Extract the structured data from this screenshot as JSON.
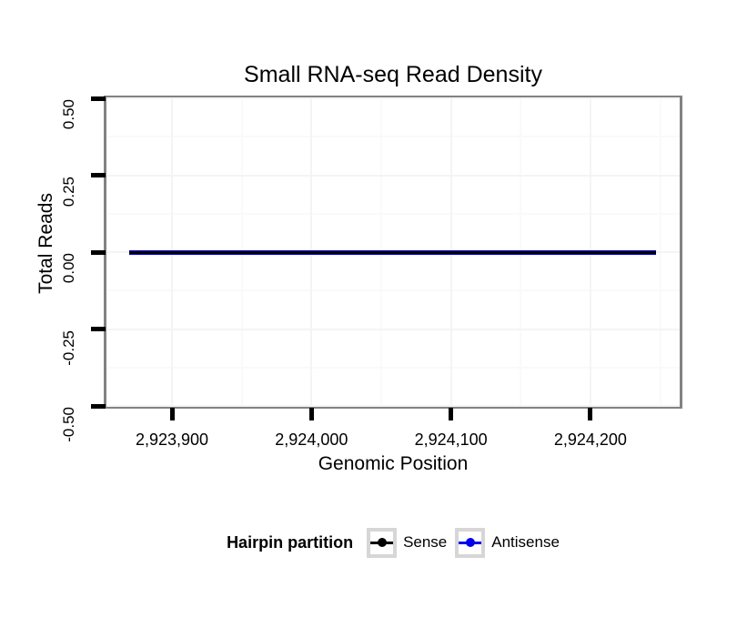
{
  "chart_data": {
    "type": "line",
    "title": "Small RNA-seq Read Density",
    "xlabel": "Genomic Position",
    "ylabel": "Total Reads",
    "xlim": [
      2923853,
      2924264
    ],
    "ylim": [
      -0.5,
      0.5
    ],
    "x_ticks": [
      {
        "value": 2923900,
        "label": "2,923,900"
      },
      {
        "value": 2924000,
        "label": "2,924,000"
      },
      {
        "value": 2924100,
        "label": "2,924,100"
      },
      {
        "value": 2924200,
        "label": "2,924,200"
      }
    ],
    "x_minor_ticks": [
      2923950,
      2924050,
      2924150,
      2924250
    ],
    "y_ticks": [
      {
        "value": 0.5,
        "label": "0.50"
      },
      {
        "value": 0.25,
        "label": "0.25"
      },
      {
        "value": 0.0,
        "label": "0.00"
      },
      {
        "value": -0.25,
        "label": "-0.25"
      },
      {
        "value": -0.5,
        "label": "-0.50"
      }
    ],
    "y_minor_ticks": [
      0.375,
      0.125,
      -0.125,
      -0.375
    ],
    "grid": {
      "visible": true,
      "major_color": "#f4f4f4",
      "minor_color": "#fafafa"
    },
    "panel_border_color": "#828282",
    "tick_color": "#000000",
    "series": [
      {
        "name": "Sense",
        "color": "#000000",
        "x_start": 2923869,
        "x_end": 2924247,
        "y_value": 0,
        "linewidth": 3
      },
      {
        "name": "Antisense",
        "color": "#0000ee",
        "x_start": 2923869,
        "x_end": 2924247,
        "y_value": 0,
        "linewidth": 5
      }
    ],
    "legend": {
      "title": "Hairpin partition",
      "position": "bottom",
      "entries": [
        {
          "label": "Sense",
          "color": "#000000"
        },
        {
          "label": "Antisense",
          "color": "#0000ee"
        }
      ]
    }
  }
}
